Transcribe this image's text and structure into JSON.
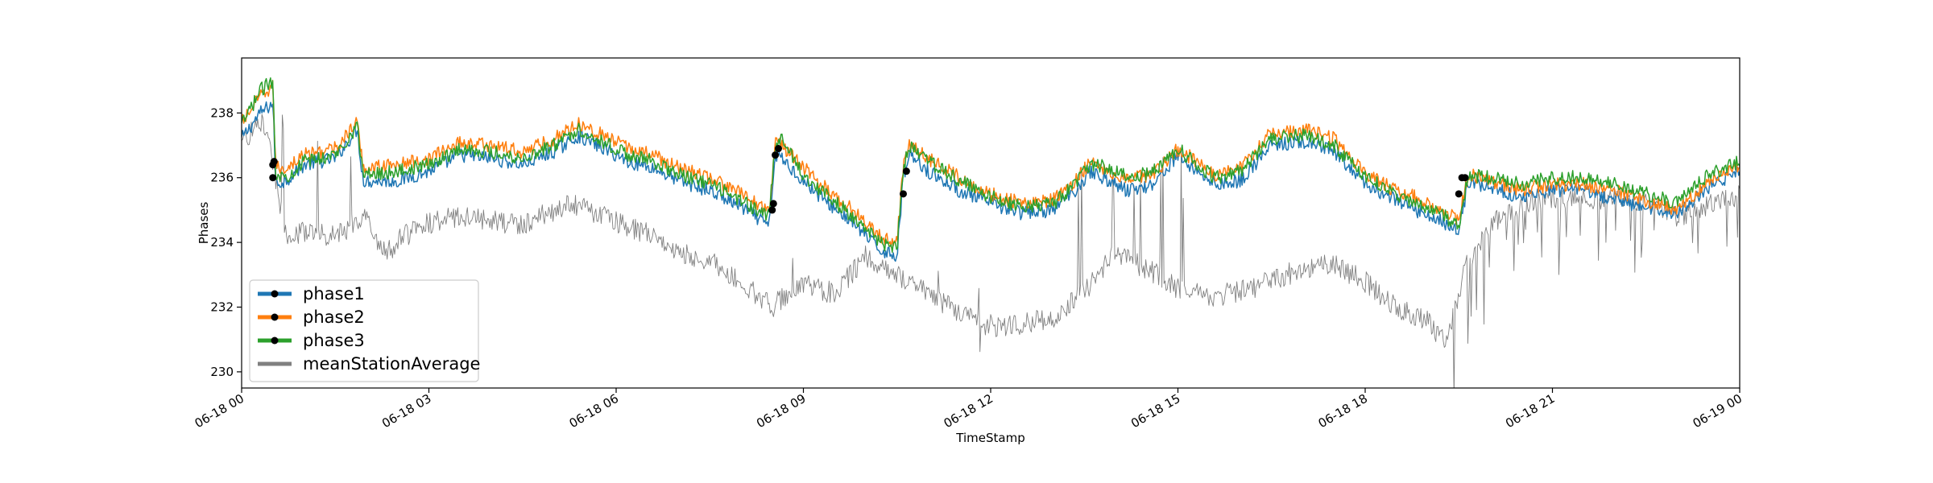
{
  "chart_data": {
    "type": "line",
    "xlabel": "TimeStamp",
    "ylabel": "Phases",
    "x_tick_labels": [
      "06-18 00",
      "06-18 03",
      "06-18 06",
      "06-18 09",
      "06-18 12",
      "06-18 15",
      "06-18 18",
      "06-18 21",
      "06-19 00"
    ],
    "x_tick_hours": [
      0,
      3,
      6,
      9,
      12,
      15,
      18,
      21,
      24
    ],
    "xlim_hours": [
      0,
      24
    ],
    "ylim": [
      229.5,
      239.7
    ],
    "y_ticks": [
      230,
      232,
      234,
      236,
      238
    ],
    "y_tick_labels": [
      "230",
      "232",
      "234",
      "236",
      "238"
    ],
    "legend_position": "lower-left",
    "grid": false,
    "series": [
      {
        "name": "phase1",
        "color": "#1f77b4",
        "noise": 0.22,
        "hours": [
          0,
          0.3,
          0.5,
          0.55,
          0.7,
          1.0,
          1.5,
          1.85,
          1.95,
          2.5,
          3.0,
          3.5,
          4.0,
          4.5,
          5.0,
          5.4,
          5.8,
          6.2,
          6.6,
          7.0,
          7.5,
          8.0,
          8.45,
          8.55,
          8.65,
          9.0,
          9.4,
          9.8,
          10.2,
          10.5,
          10.6,
          10.7,
          11.0,
          11.5,
          12.0,
          12.5,
          13.0,
          13.3,
          13.6,
          13.9,
          14.2,
          14.6,
          15.0,
          15.3,
          15.6,
          16.0,
          16.5,
          17.0,
          17.5,
          18.0,
          18.4,
          18.8,
          19.2,
          19.5,
          19.65,
          20.0,
          20.5,
          21.0,
          21.5,
          22.0,
          22.5,
          23.0,
          23.5,
          24.0
        ],
        "values": [
          237.2,
          238.0,
          238.3,
          235.8,
          235.9,
          236.4,
          236.6,
          237.5,
          235.9,
          235.9,
          236.2,
          236.7,
          236.6,
          236.4,
          236.8,
          237.3,
          236.9,
          236.5,
          236.3,
          235.9,
          235.6,
          235.1,
          234.5,
          236.7,
          236.6,
          235.9,
          235.2,
          234.6,
          233.8,
          233.6,
          236.0,
          236.8,
          236.2,
          235.6,
          235.2,
          234.9,
          235.0,
          235.5,
          236.2,
          235.9,
          235.6,
          235.8,
          236.7,
          236.2,
          235.8,
          235.9,
          237.0,
          237.1,
          236.8,
          235.8,
          235.4,
          235.0,
          234.7,
          234.3,
          235.9,
          235.7,
          235.4,
          235.6,
          235.6,
          235.3,
          235.1,
          234.9,
          235.7,
          236.2
        ]
      },
      {
        "name": "phase2",
        "color": "#ff7f0e",
        "noise": 0.22,
        "hours": [
          0,
          0.3,
          0.5,
          0.55,
          0.7,
          1.0,
          1.5,
          1.85,
          1.95,
          2.5,
          3.0,
          3.5,
          4.0,
          4.5,
          5.0,
          5.4,
          5.8,
          6.2,
          6.6,
          7.0,
          7.5,
          8.0,
          8.45,
          8.55,
          8.65,
          9.0,
          9.4,
          9.8,
          10.2,
          10.5,
          10.6,
          10.7,
          11.0,
          11.5,
          12.0,
          12.5,
          13.0,
          13.3,
          13.6,
          13.9,
          14.2,
          14.6,
          15.0,
          15.3,
          15.6,
          16.0,
          16.5,
          17.0,
          17.5,
          18.0,
          18.4,
          18.8,
          19.2,
          19.5,
          19.65,
          20.0,
          20.5,
          21.0,
          21.5,
          22.0,
          22.5,
          23.0,
          23.5,
          24.0
        ],
        "values": [
          237.7,
          238.5,
          238.8,
          236.3,
          236.3,
          236.7,
          236.9,
          237.7,
          236.3,
          236.4,
          236.6,
          237.1,
          237.0,
          236.8,
          237.2,
          237.7,
          237.3,
          236.9,
          236.7,
          236.3,
          236.0,
          235.5,
          235.0,
          237.1,
          237.0,
          236.3,
          235.6,
          235.0,
          234.2,
          234.0,
          236.4,
          237.1,
          236.6,
          236.0,
          235.5,
          235.2,
          235.3,
          235.8,
          236.5,
          236.2,
          236.0,
          236.1,
          236.9,
          236.5,
          236.1,
          236.3,
          237.4,
          237.5,
          237.2,
          236.1,
          235.7,
          235.4,
          235.0,
          234.7,
          236.1,
          235.9,
          235.6,
          235.8,
          235.8,
          235.6,
          235.3,
          235.0,
          235.9,
          236.4
        ]
      },
      {
        "name": "phase3",
        "color": "#2ca02c",
        "noise": 0.22,
        "hours": [
          0,
          0.3,
          0.5,
          0.55,
          0.7,
          1.0,
          1.5,
          1.85,
          1.95,
          2.5,
          3.0,
          3.5,
          4.0,
          4.5,
          5.0,
          5.4,
          5.8,
          6.2,
          6.6,
          7.0,
          7.5,
          8.0,
          8.45,
          8.55,
          8.65,
          9.0,
          9.4,
          9.8,
          10.2,
          10.5,
          10.6,
          10.7,
          11.0,
          11.5,
          12.0,
          12.5,
          13.0,
          13.3,
          13.6,
          13.9,
          14.2,
          14.6,
          15.0,
          15.3,
          15.6,
          16.0,
          16.5,
          17.0,
          17.5,
          18.0,
          18.4,
          18.8,
          19.2,
          19.5,
          19.65,
          20.0,
          20.5,
          21.0,
          21.5,
          22.0,
          22.5,
          23.0,
          23.5,
          24.0
        ],
        "values": [
          237.6,
          238.7,
          239.0,
          236.1,
          236.0,
          236.5,
          236.7,
          237.6,
          236.1,
          236.2,
          236.4,
          236.9,
          236.8,
          236.6,
          237.0,
          237.5,
          237.1,
          236.7,
          236.5,
          236.1,
          235.8,
          235.3,
          234.8,
          237.0,
          237.2,
          236.1,
          235.4,
          234.8,
          234.0,
          233.8,
          236.3,
          237.0,
          236.5,
          235.9,
          235.4,
          235.1,
          235.2,
          235.7,
          236.4,
          236.3,
          236.0,
          236.2,
          236.9,
          236.4,
          236.0,
          236.2,
          237.2,
          237.3,
          237.0,
          236.0,
          235.6,
          235.2,
          234.9,
          234.5,
          236.1,
          236.0,
          235.8,
          236.0,
          236.0,
          235.8,
          235.5,
          235.2,
          236.1,
          236.5
        ]
      },
      {
        "name": "meanStationAverage",
        "color": "#808080",
        "noise": 0.35,
        "hours": [
          0,
          0.3,
          0.5,
          0.7,
          1.0,
          1.5,
          2.0,
          2.3,
          2.6,
          3.0,
          3.5,
          4.0,
          4.5,
          5.0,
          5.4,
          5.8,
          6.2,
          6.6,
          7.0,
          7.5,
          8.0,
          8.5,
          9.0,
          9.5,
          10.0,
          10.5,
          11.0,
          11.5,
          12.0,
          12.5,
          13.0,
          13.5,
          14.0,
          14.5,
          15.0,
          15.5,
          16.0,
          16.5,
          17.0,
          17.5,
          18.0,
          18.5,
          19.0,
          19.3,
          19.6,
          20.0,
          20.5,
          21.0,
          21.5,
          22.0,
          22.5,
          23.0,
          23.5,
          24.0
        ],
        "values": [
          237.0,
          237.8,
          236.5,
          234.3,
          234.3,
          234.2,
          234.8,
          233.6,
          234.2,
          234.6,
          234.8,
          234.7,
          234.5,
          235.0,
          235.2,
          234.8,
          234.5,
          234.2,
          233.7,
          233.4,
          232.8,
          232.0,
          232.8,
          232.4,
          233.6,
          233.0,
          232.4,
          231.8,
          231.4,
          231.5,
          231.7,
          232.5,
          233.7,
          233.2,
          232.6,
          232.3,
          232.5,
          232.8,
          233.2,
          233.3,
          232.8,
          232.0,
          231.6,
          230.8,
          233.2,
          234.6,
          235.2,
          235.4,
          235.3,
          235.4,
          235.3,
          234.8,
          235.2,
          235.5
        ]
      }
    ],
    "markers": [
      {
        "series": "phase1",
        "points": [
          [
            0.5,
            236.0
          ],
          [
            8.55,
            236.7
          ],
          [
            10.6,
            235.5
          ],
          [
            19.5,
            235.5
          ]
        ]
      },
      {
        "series": "phase2",
        "points": [
          [
            0.5,
            236.4
          ],
          [
            8.5,
            235.0
          ],
          [
            10.65,
            236.2
          ],
          [
            19.55,
            236.0
          ]
        ]
      },
      {
        "series": "phase3",
        "points": [
          [
            0.52,
            236.5
          ],
          [
            8.6,
            236.9
          ],
          [
            8.52,
            235.2
          ],
          [
            19.6,
            236.0
          ]
        ]
      }
    ]
  }
}
